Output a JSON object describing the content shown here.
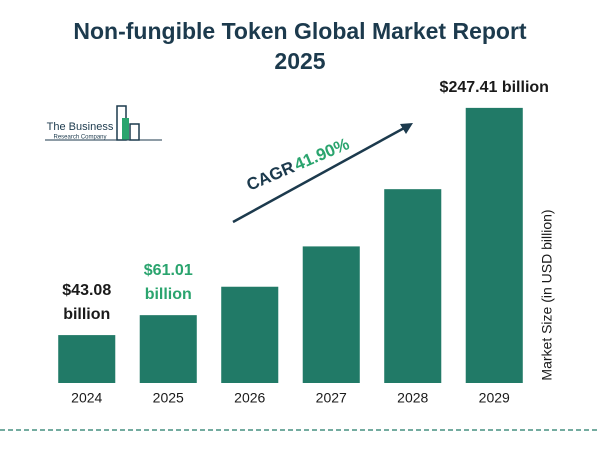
{
  "chart_data": {
    "type": "bar",
    "title": "Non-fungible Token Global Market Report 2025",
    "categories": [
      "2024",
      "2025",
      "2026",
      "2027",
      "2028",
      "2029"
    ],
    "values": [
      43.08,
      61.01,
      86.57,
      122.84,
      174.31,
      247.41
    ],
    "value_labels": [
      "$43.08 billion",
      "$61.01 billion",
      null,
      null,
      null,
      "$247.41 billion"
    ],
    "color": "#217a67",
    "ylim": [
      0,
      250
    ],
    "y_label": "Market Size (in USD billion)",
    "annotation": {
      "label": "CAGR",
      "value": "41.90%"
    },
    "logo": [
      "The Business",
      "Research Company"
    ]
  }
}
